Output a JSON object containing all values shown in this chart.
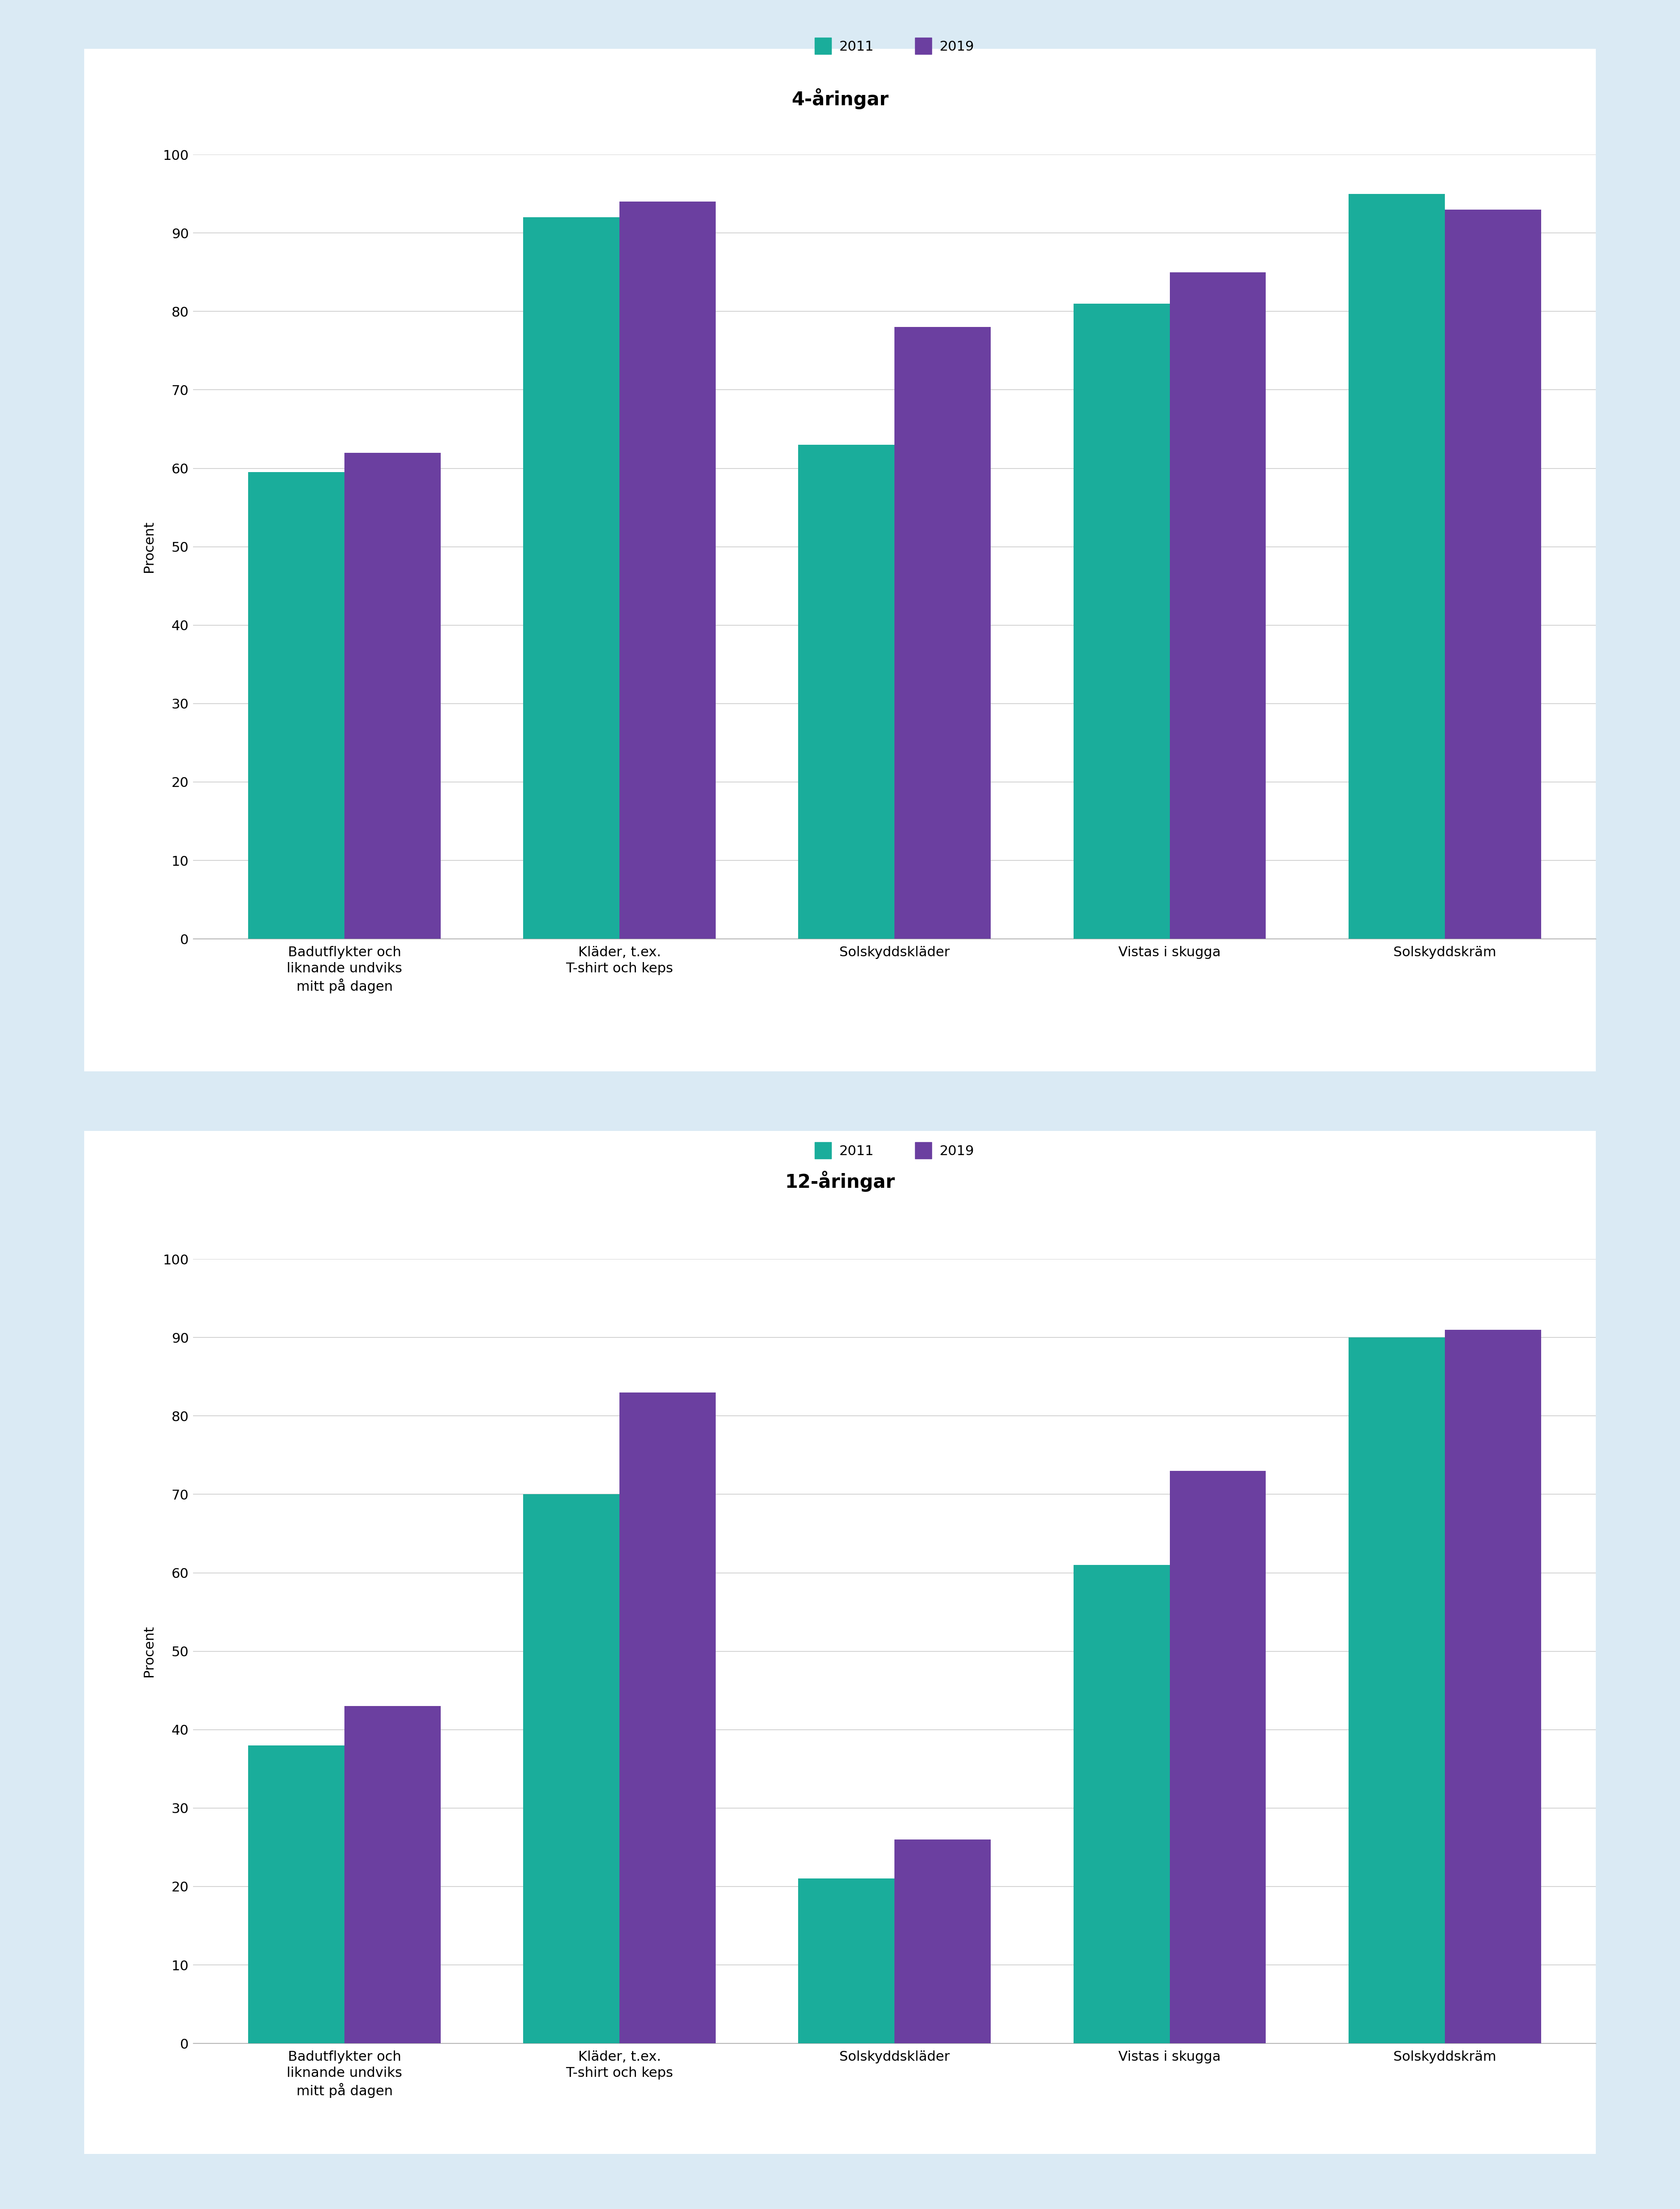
{
  "chart1": {
    "title": "4-åringar",
    "categories": [
      "Badutflykter och\nliknande undviks\nmitt på dagen",
      "Kläder, t.ex.\nT-shirt och keps",
      "Solskyddskläder",
      "Vistas i skugga",
      "Solskyddskräm"
    ],
    "values_2011": [
      59.5,
      92,
      63,
      81,
      95
    ],
    "values_2019": [
      62,
      94,
      78,
      85,
      93
    ],
    "ylabel": "Procent",
    "ylim": [
      0,
      100
    ],
    "yticks": [
      0,
      10,
      20,
      30,
      40,
      50,
      60,
      70,
      80,
      90,
      100
    ]
  },
  "chart2": {
    "title": "12-åringar",
    "categories": [
      "Badutflykter och\nliknande undviks\nmitt på dagen",
      "Kläder, t.ex.\nT-shirt och keps",
      "Solskyddskläder",
      "Vistas i skugga",
      "Solskyddskräm"
    ],
    "values_2011": [
      38,
      70,
      21,
      61,
      90
    ],
    "values_2019": [
      43,
      83,
      26,
      73,
      91
    ],
    "ylabel": "Procent",
    "ylim": [
      0,
      100
    ],
    "yticks": [
      0,
      10,
      20,
      30,
      40,
      50,
      60,
      70,
      80,
      90,
      100
    ]
  },
  "color_2011": "#1aad9b",
  "color_2019": "#6b3fa0",
  "background_outer": "#daeaf4",
  "background_inner": "#ffffff",
  "bar_width": 0.35,
  "legend_2011": "2011",
  "legend_2019": "2019",
  "title_fontsize": 30,
  "tick_fontsize": 22,
  "legend_fontsize": 22,
  "ylabel_fontsize": 22
}
